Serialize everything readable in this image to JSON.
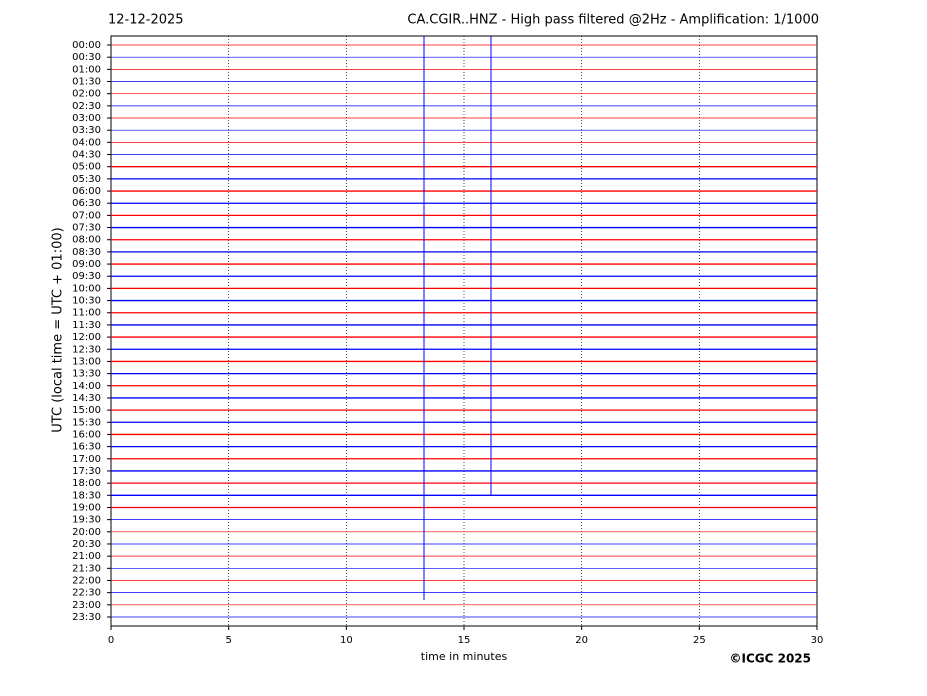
{
  "chart_data": {
    "type": "helicorder",
    "date": "12-12-2025",
    "title": "CA.CGIR..HNZ - High pass filtered @2Hz - Amplification: 1/1000",
    "ylabel": "UTC (local time = UTC + 01:00)",
    "xlabel": "time in minutes",
    "copyright": "©ICGC 2025",
    "categories": [
      "00:00",
      "00:30",
      "01:00",
      "01:30",
      "02:00",
      "02:30",
      "03:00",
      "03:30",
      "04:00",
      "04:30",
      "05:00",
      "05:30",
      "06:00",
      "06:30",
      "07:00",
      "07:30",
      "08:00",
      "08:30",
      "09:00",
      "09:30",
      "10:00",
      "10:30",
      "11:00",
      "11:30",
      "12:00",
      "12:30",
      "13:00",
      "13:30",
      "14:00",
      "14:30",
      "15:00",
      "15:30",
      "16:00",
      "16:30",
      "17:00",
      "17:30",
      "18:00",
      "18:30",
      "19:00",
      "19:30",
      "20:00",
      "20:30",
      "21:00",
      "21:30",
      "22:00",
      "22:30",
      "23:00",
      "23:30"
    ],
    "colors": [
      "#ff0000",
      "#0000ff"
    ],
    "xlim": [
      0,
      30
    ],
    "xticks": [
      0,
      5,
      10,
      15,
      20,
      25,
      30
    ],
    "grid": true
  }
}
